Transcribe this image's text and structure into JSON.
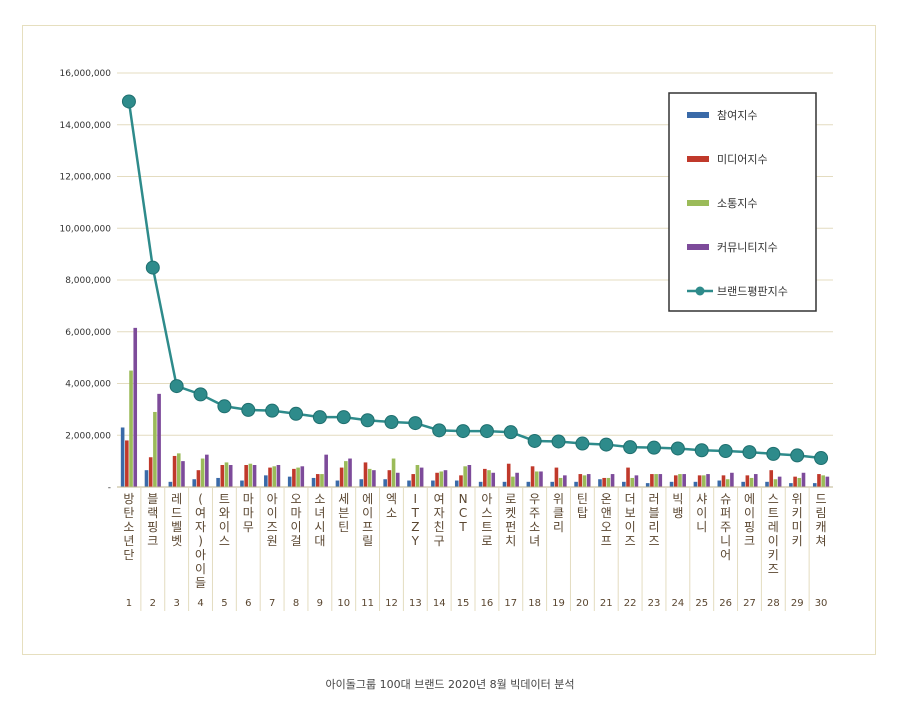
{
  "caption": "아이돌그룹 100대 브랜드 2020년 8월 빅데이터 분석",
  "chart_data": {
    "type": "bar",
    "y_ticks": [
      "16,000,000",
      "14,000,000",
      "12,000,000",
      "10,000,000",
      "8,000,000",
      "6,000,000",
      "4,000,000",
      "2,000,000",
      "-"
    ],
    "ylim": [
      0,
      16000000
    ],
    "grid": true,
    "legend_position": "top-right",
    "categories": [
      "방탄소년단",
      "블랙핑크",
      "레드벨벳",
      "(여자)아이들",
      "트와이스",
      "마마무",
      "아이즈원",
      "오마이걸",
      "소녀시대",
      "세븐틴",
      "에이프릴",
      "엑소",
      "ITZY",
      "여자친구",
      "NCT",
      "아스트로",
      "로켓펀치",
      "우주소녀",
      "위클리",
      "틴탑",
      "온앤오프",
      "더보이즈",
      "러블리즈",
      "빅뱅",
      "샤이니",
      "슈퍼주니어",
      "에이핑크",
      "스트레이키즈",
      "위키미키",
      "드림캐쳐"
    ],
    "ranks": [
      "1",
      "2",
      "3",
      "4",
      "5",
      "6",
      "7",
      "8",
      "9",
      "10",
      "11",
      "12",
      "13",
      "14",
      "15",
      "16",
      "17",
      "18",
      "19",
      "20",
      "21",
      "22",
      "23",
      "24",
      "25",
      "26",
      "27",
      "28",
      "29",
      "30"
    ],
    "series": [
      {
        "name": "참여지수",
        "color": "#3a6aa8",
        "values": [
          2300000,
          650000,
          200000,
          300000,
          350000,
          250000,
          450000,
          400000,
          350000,
          250000,
          300000,
          300000,
          250000,
          250000,
          250000,
          200000,
          200000,
          200000,
          200000,
          200000,
          300000,
          200000,
          150000,
          200000,
          200000,
          250000,
          200000,
          200000,
          150000,
          150000
        ]
      },
      {
        "name": "미디어지수",
        "color": "#c0392b",
        "values": [
          1800000,
          1150000,
          1200000,
          650000,
          850000,
          850000,
          750000,
          700000,
          500000,
          750000,
          950000,
          650000,
          500000,
          550000,
          450000,
          700000,
          900000,
          800000,
          750000,
          500000,
          350000,
          750000,
          500000,
          450000,
          450000,
          450000,
          450000,
          650000,
          400000,
          500000
        ]
      },
      {
        "name": "소통지수",
        "color": "#9bbb59",
        "values": [
          4500000,
          2900000,
          1300000,
          1100000,
          950000,
          900000,
          800000,
          750000,
          500000,
          1000000,
          700000,
          1100000,
          850000,
          600000,
          800000,
          650000,
          400000,
          600000,
          350000,
          450000,
          350000,
          350000,
          500000,
          500000,
          450000,
          300000,
          350000,
          300000,
          350000,
          450000
        ]
      },
      {
        "name": "커뮤니티지수",
        "color": "#7d4b9a",
        "values": [
          6150000,
          3600000,
          1000000,
          1250000,
          850000,
          850000,
          850000,
          800000,
          1250000,
          1100000,
          650000,
          550000,
          750000,
          650000,
          850000,
          550000,
          550000,
          600000,
          450000,
          500000,
          500000,
          450000,
          500000,
          500000,
          500000,
          550000,
          500000,
          400000,
          550000,
          400000
        ]
      },
      {
        "name": "브랜드평판지수",
        "color": "#2e8b8b",
        "type": "line",
        "values": [
          14900000,
          8480000,
          3900000,
          3580000,
          3120000,
          2980000,
          2950000,
          2830000,
          2700000,
          2700000,
          2580000,
          2510000,
          2470000,
          2190000,
          2160000,
          2160000,
          2120000,
          1780000,
          1760000,
          1680000,
          1640000,
          1540000,
          1520000,
          1490000,
          1420000,
          1390000,
          1350000,
          1280000,
          1220000,
          1120000
        ]
      }
    ]
  }
}
